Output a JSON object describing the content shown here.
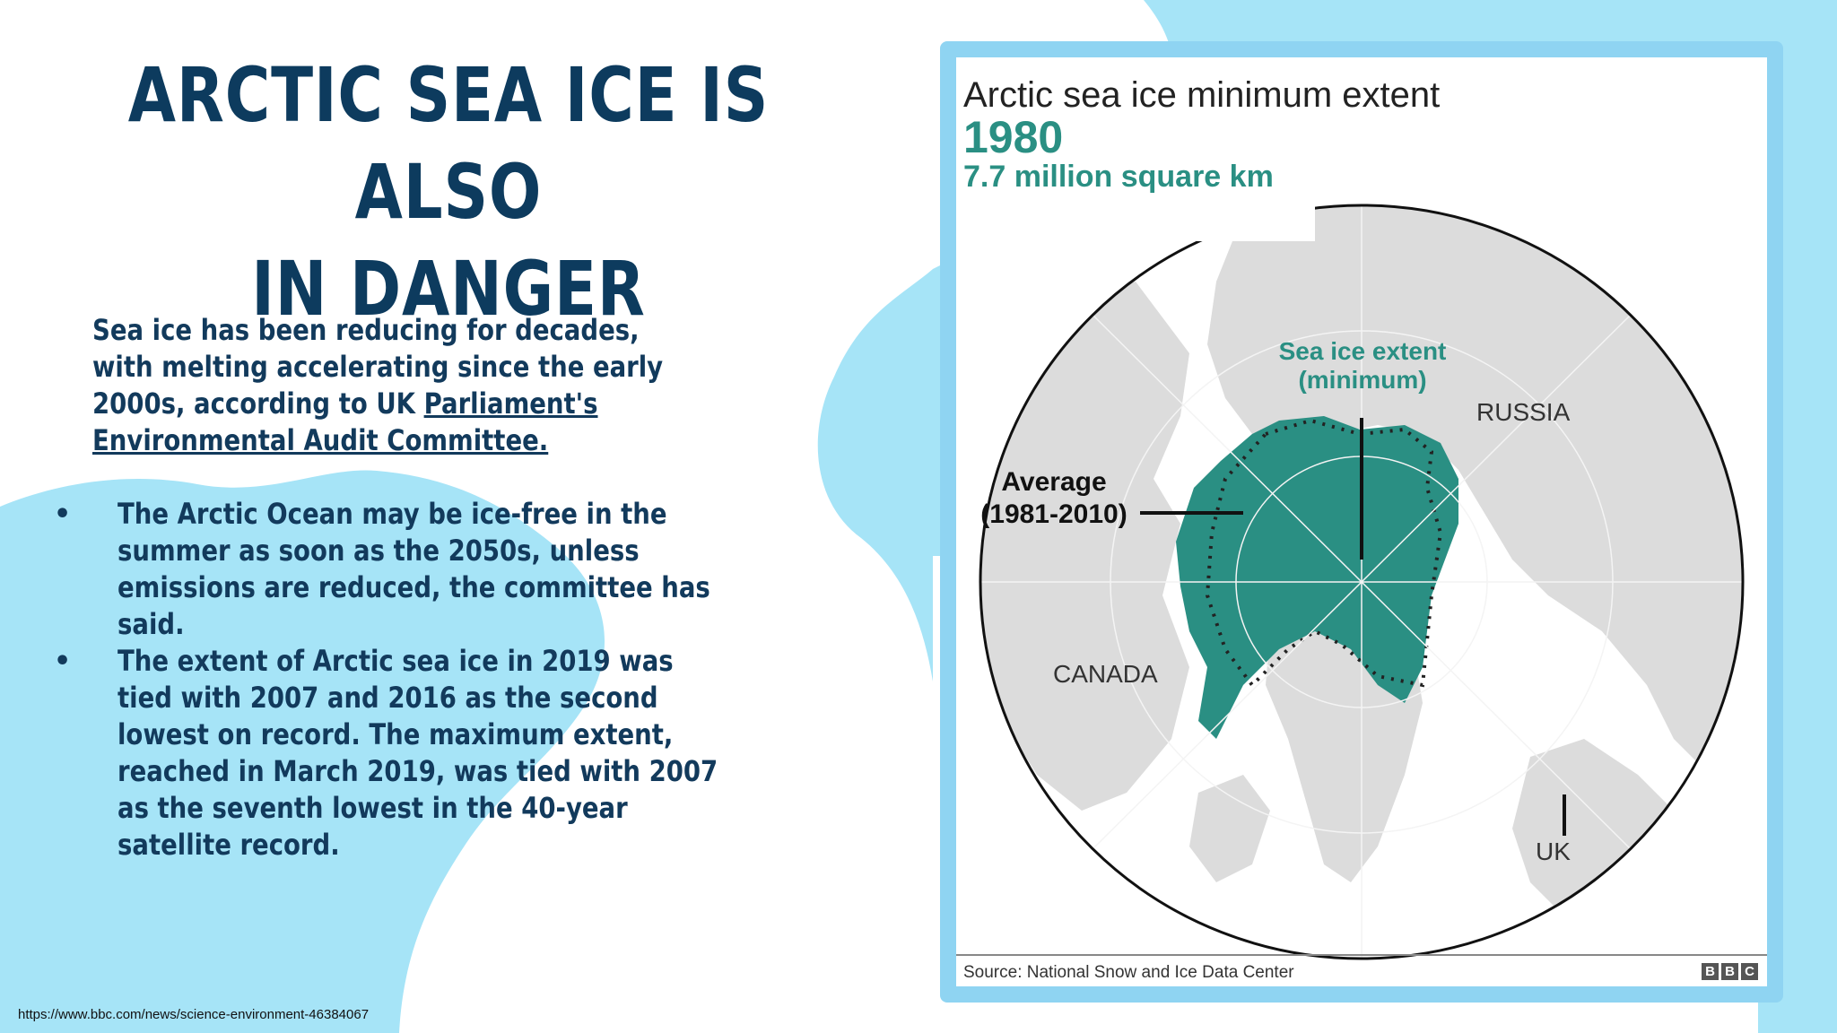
{
  "slide": {
    "title_line1": "ARCTIC SEA ICE IS ALSO",
    "title_line2": "IN DANGER",
    "intro_text": "Sea ice has been reducing for decades, with melting accelerating since the early 2000s, according to UK ",
    "intro_link": "Parliament's Environmental Audit Committee.",
    "bullets": [
      "The Arctic Ocean may be ice-free in the summer as soon as the 2050s, unless emissions are reduced, the committee has said.",
      "The extent of Arctic sea ice in 2019 was tied with 2007 and 2016 as the second lowest on record. The maximum extent, reached in March 2019, was tied with 2007 as the seventh lowest in the 40-year satellite record."
    ],
    "source_url": "https://www.bbc.com/news/science-environment-46384067"
  },
  "map": {
    "title": "Arctic sea ice minimum extent",
    "year": "1980",
    "extent": "7.7 million square km",
    "label_ice_line1": "Sea ice extent",
    "label_ice_line2": "(minimum)",
    "label_average_line1": "Average",
    "label_average_line2": "(1981-2010)",
    "label_russia": "RUSSIA",
    "label_canada": "CANADA",
    "label_uk": "UK",
    "source": "Source: National Snow and Ice Data Center",
    "logo": [
      "B",
      "B",
      "C"
    ]
  },
  "colors": {
    "title": "#0d3b5e",
    "body_text": "#123a5c",
    "blob": "#a6e4f7",
    "frame": "#8fd4f2",
    "ice": "#2a8f83",
    "land": "#dcdcdc"
  }
}
